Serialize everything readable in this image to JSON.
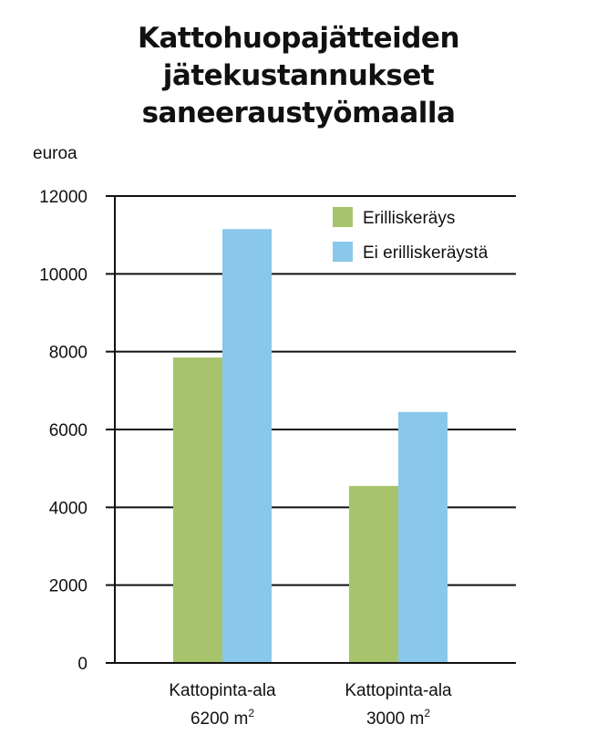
{
  "chart_data": {
    "type": "bar",
    "title_lines": [
      "Kattohuopajätteiden",
      "jätekustannukset",
      "saneeraustyömaalla"
    ],
    "ylabel": "euroa",
    "xlabel": "",
    "ylim": [
      0,
      12000
    ],
    "yticks": [
      0,
      2000,
      4000,
      6000,
      8000,
      10000,
      12000
    ],
    "categories": [
      {
        "line1": "Kattopinta-ala",
        "line2": "6200 m",
        "sup": "2"
      },
      {
        "line1": "Kattopinta-ala",
        "line2": "3000 m",
        "sup": "2"
      }
    ],
    "series": [
      {
        "name": "Erilliskeräys",
        "color": "#a7c46c",
        "values": [
          7850,
          4550
        ]
      },
      {
        "name": "Ei erilliskeräystä",
        "color": "#89c8ea",
        "values": [
          11150,
          6450
        ]
      }
    ],
    "grid": true,
    "legend_position": "top-right"
  }
}
